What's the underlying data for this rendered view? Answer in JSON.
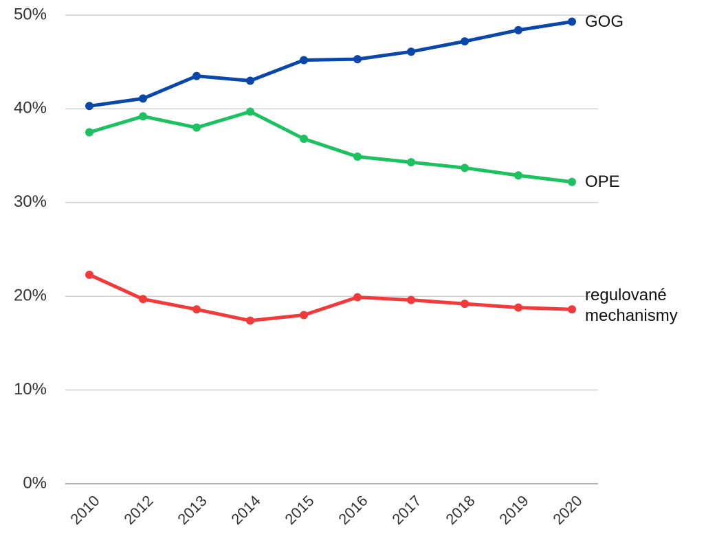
{
  "chart_data": {
    "type": "line",
    "categories": [
      "2010",
      "2012",
      "2013",
      "2014",
      "2015",
      "2016",
      "2017",
      "2018",
      "2019",
      "2020"
    ],
    "series": [
      {
        "name": "GOG",
        "color": "#0a47a9",
        "values": [
          40.3,
          41.1,
          43.5,
          43.0,
          45.2,
          45.3,
          46.1,
          47.2,
          48.4,
          49.3
        ]
      },
      {
        "name": "OPE",
        "color": "#1cc160",
        "values": [
          37.5,
          39.2,
          38.0,
          39.7,
          36.8,
          34.9,
          34.3,
          33.7,
          32.9,
          32.2
        ]
      },
      {
        "name": "regulované mechanismy",
        "color": "#f23a3a",
        "values": [
          22.3,
          19.7,
          18.6,
          17.4,
          18.0,
          19.9,
          19.6,
          19.2,
          18.8,
          18.6
        ]
      }
    ],
    "ylim": [
      0,
      50
    ],
    "yticks": [
      {
        "value": 0,
        "label": "0%"
      },
      {
        "value": 10,
        "label": "10%"
      },
      {
        "value": 20,
        "label": "20%"
      },
      {
        "value": 30,
        "label": "30%"
      },
      {
        "value": 40,
        "label": "40%"
      },
      {
        "value": 50,
        "label": "50%"
      }
    ],
    "grid": true
  }
}
